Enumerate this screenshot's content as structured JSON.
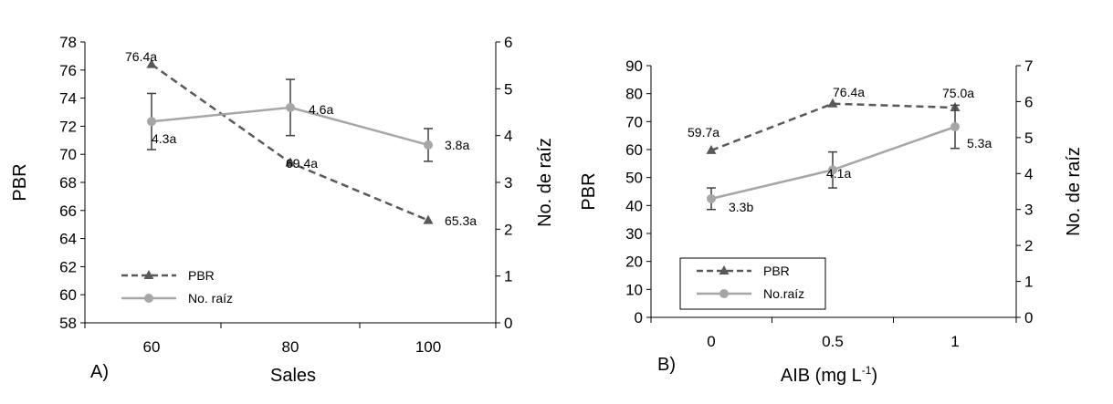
{
  "colors": {
    "pbr": "#595959",
    "raiz": "#a6a6a6",
    "errorbar": "#404040",
    "axis": "#000000"
  },
  "chart_data": [
    {
      "type": "line",
      "panel_label": "A)",
      "xlabel": "Sales",
      "ylabel": "PBR",
      "y2label": "No. de raíz",
      "categories": [
        "60",
        "80",
        "100"
      ],
      "ylim": [
        58,
        78
      ],
      "yticks": [
        "58",
        "60",
        "62",
        "64",
        "66",
        "68",
        "70",
        "72",
        "74",
        "76",
        "78"
      ],
      "y2lim": [
        0,
        6
      ],
      "y2ticks": [
        "0",
        "1",
        "2",
        "3",
        "4",
        "5",
        "6"
      ],
      "grid": false,
      "legend_position": "bottom-left",
      "series": [
        {
          "name": "PBR",
          "axis": "left",
          "style": "dashed",
          "marker": "triangle",
          "values": [
            76.4,
            69.4,
            65.3
          ],
          "labels": [
            "76.4a",
            "69.4a",
            "65.3a"
          ]
        },
        {
          "name": "No. raíz",
          "axis": "right",
          "style": "solid",
          "marker": "circle",
          "values": [
            4.3,
            4.6,
            3.8
          ],
          "labels": [
            "4.3a",
            "4.6a",
            "3.8a"
          ],
          "error": [
            0.6,
            0.6,
            0.35
          ]
        }
      ]
    },
    {
      "type": "line",
      "panel_label": "B)",
      "xlabel": "AIB (mg L",
      "xlabel_sup": "-1",
      "xlabel_end": ")",
      "ylabel": "PBR",
      "y2label": "No. de raíz",
      "categories": [
        "0",
        "0.5",
        "1"
      ],
      "ylim": [
        0,
        90
      ],
      "yticks": [
        "0",
        "10",
        "20",
        "30",
        "40",
        "50",
        "60",
        "70",
        "80",
        "90"
      ],
      "y2lim": [
        0,
        7
      ],
      "y2ticks": [
        "0",
        "1",
        "2",
        "3",
        "4",
        "5",
        "6",
        "7"
      ],
      "grid": false,
      "legend_position": "bottom-left",
      "series": [
        {
          "name": "PBR",
          "axis": "left",
          "style": "dashed",
          "marker": "triangle",
          "values": [
            59.7,
            76.4,
            75.0
          ],
          "labels": [
            "59.7a",
            "76.4a",
            "75.0a"
          ]
        },
        {
          "name": "No.raíz",
          "axis": "right",
          "style": "solid",
          "marker": "circle",
          "values": [
            3.3,
            4.1,
            5.3
          ],
          "labels": [
            "3.3b",
            "4.1a",
            "5.3a"
          ],
          "error": [
            0.3,
            0.5,
            0.6
          ]
        }
      ]
    }
  ]
}
